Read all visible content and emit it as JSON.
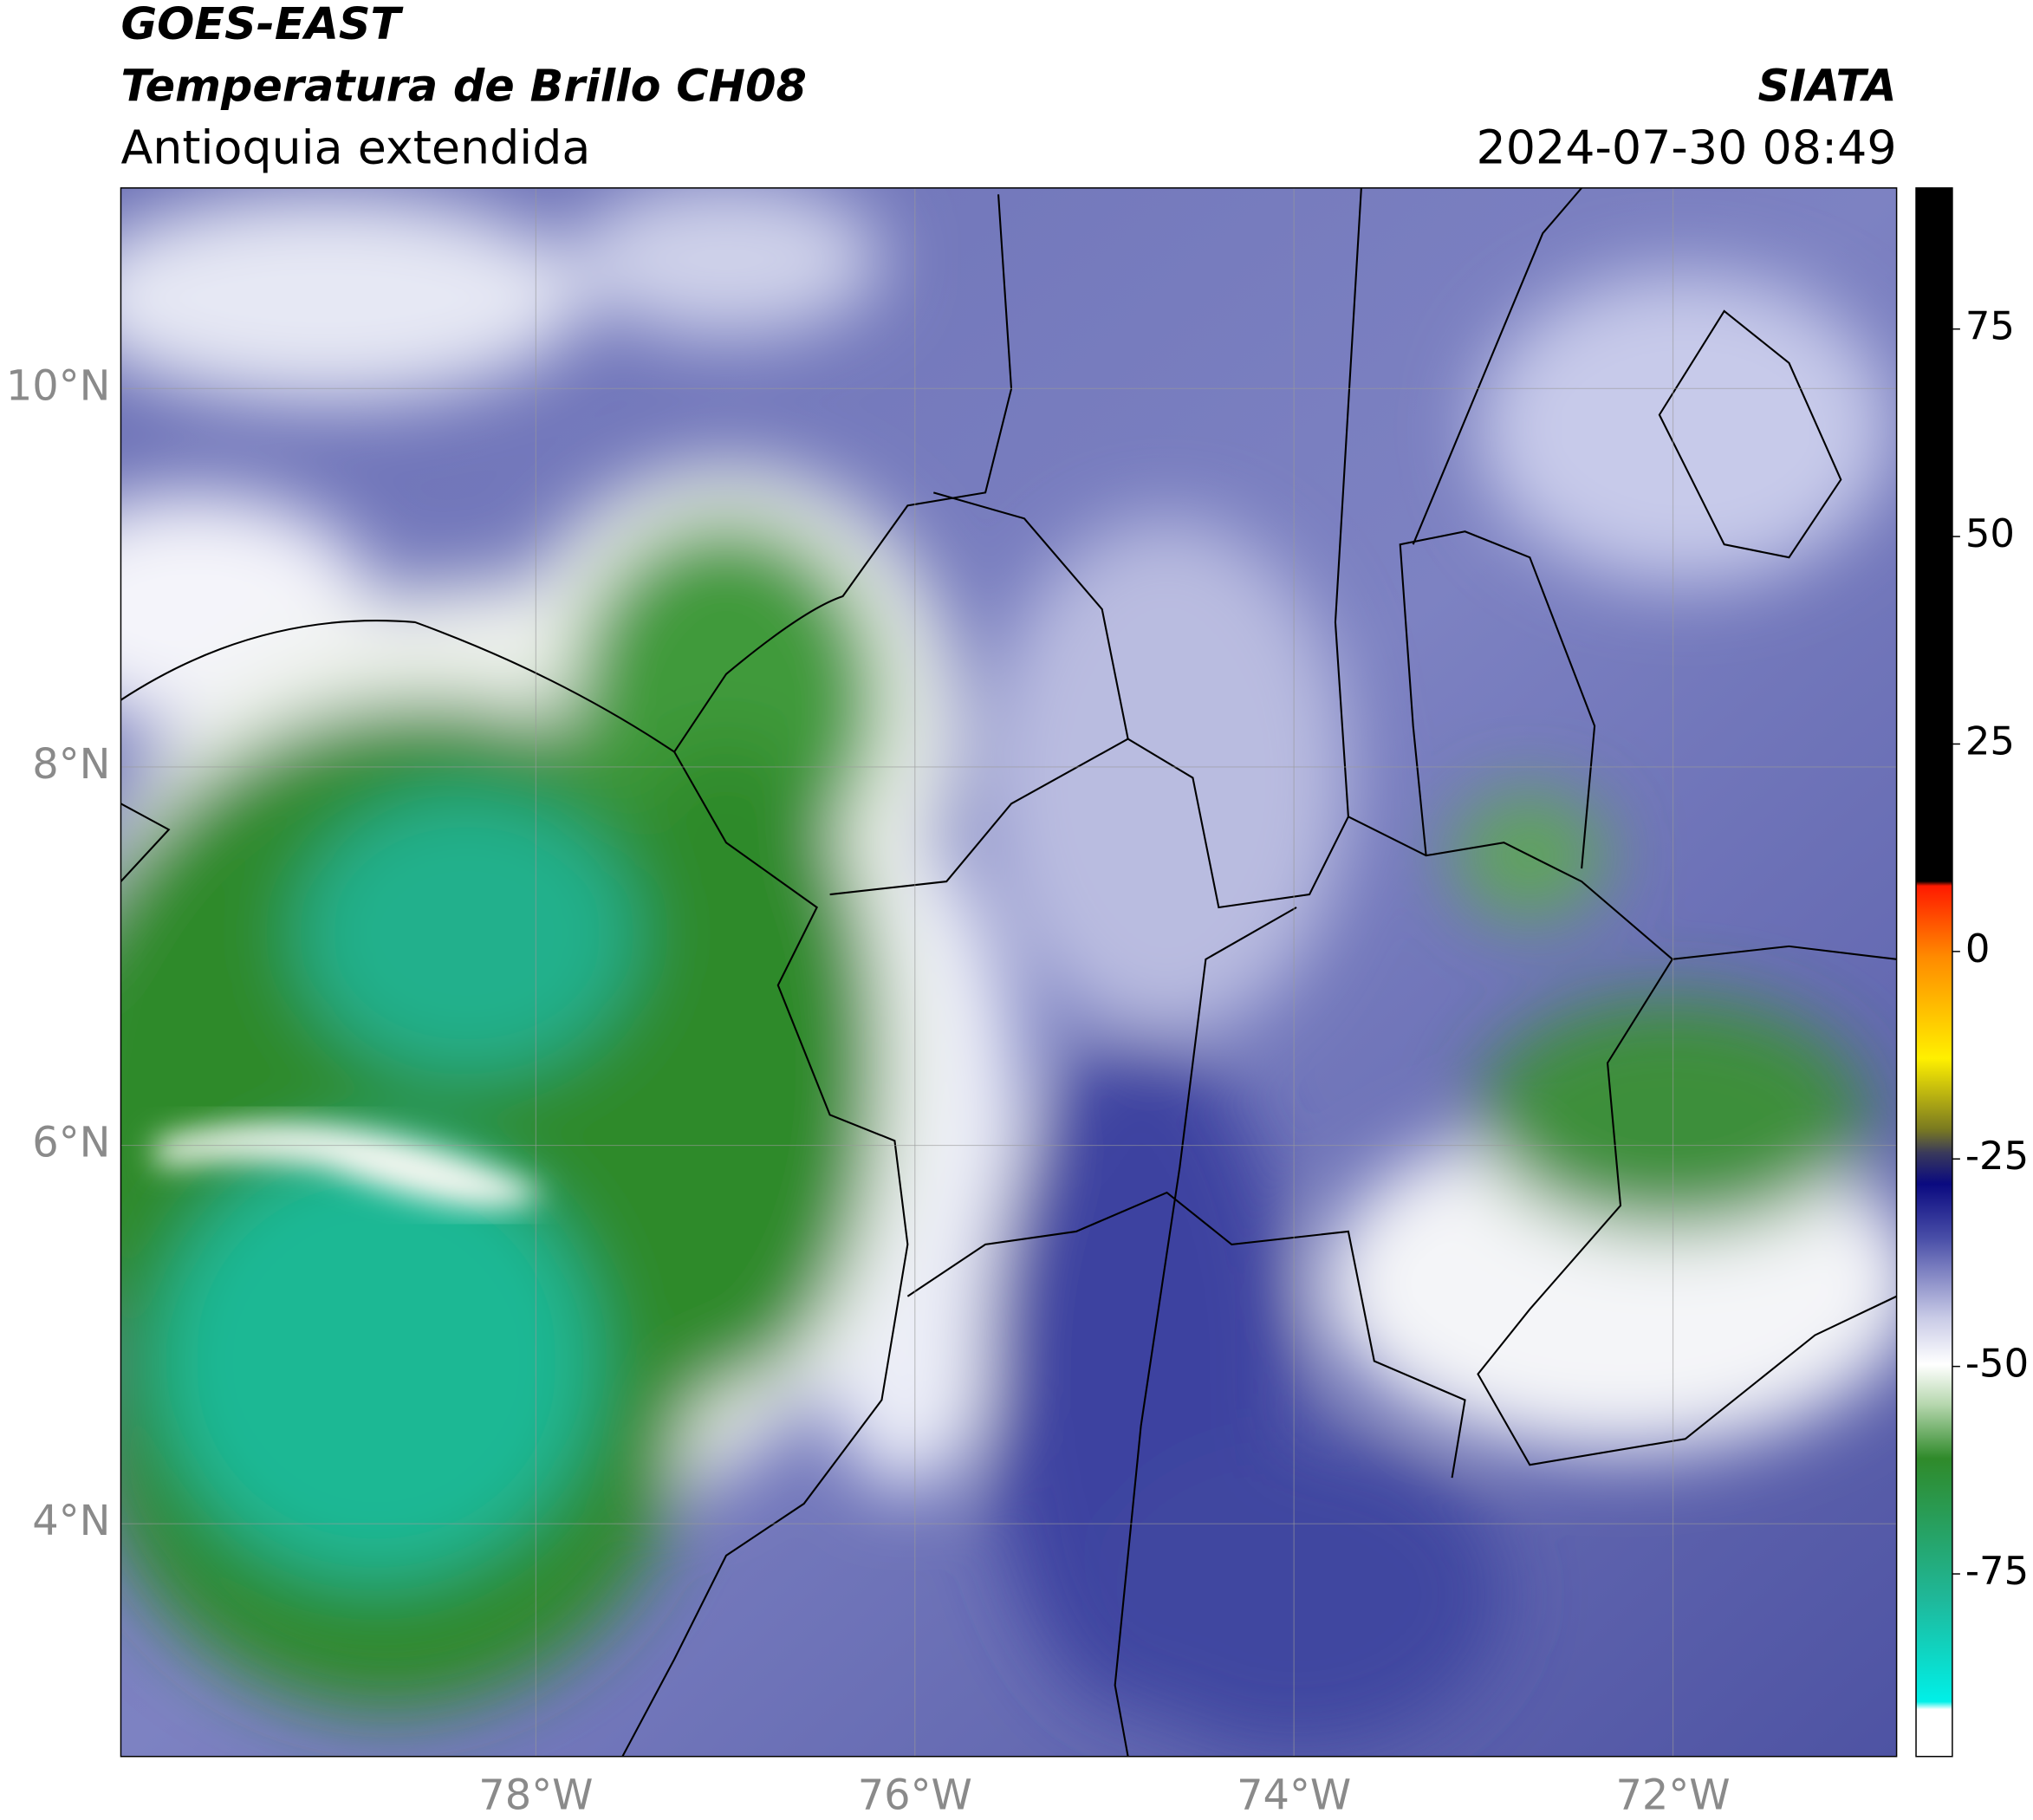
{
  "header": {
    "title": "GOES-EAST",
    "subtitle": "Temperatura de Brillo CH08",
    "region": "Antioquia extendida",
    "agency": "SIATA",
    "datetime": "2024-07-30 08:49"
  },
  "map": {
    "latlim": [
      2.77,
      11.06
    ],
    "lonlim": [
      -80.19,
      -70.82
    ],
    "lat_ticks": [
      {
        "value": 10,
        "label": "10°N"
      },
      {
        "value": 8,
        "label": "8°N"
      },
      {
        "value": 6,
        "label": "6°N"
      },
      {
        "value": 4,
        "label": "4°N"
      }
    ],
    "lon_ticks": [
      {
        "value": -78,
        "label": "78°W"
      },
      {
        "value": -76,
        "label": "76°W"
      },
      {
        "value": -74,
        "label": "74°W"
      },
      {
        "value": -72,
        "label": "72°W"
      }
    ]
  },
  "colorbar": {
    "lim": [
      -97,
      92
    ],
    "ticks": [
      75,
      50,
      25,
      0,
      -25,
      -50,
      -75
    ]
  }
}
